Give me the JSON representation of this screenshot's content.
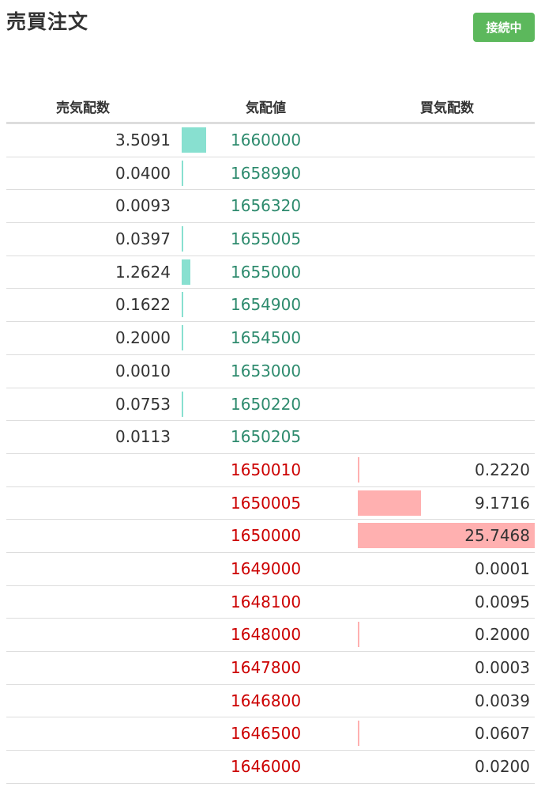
{
  "title": "売買注文",
  "status": "接続中",
  "colors": {
    "ask_price": "#2e8b6e",
    "bid_price": "#cc0000",
    "ask_bar": "#88e0d0",
    "bid_bar": "#ffb0b0",
    "status": "#5cb85c"
  },
  "headers": {
    "ask_qty": "売気配数",
    "price": "気配値",
    "bid_qty": "買気配数"
  },
  "max_qty": 25.7468,
  "asks": [
    {
      "qty": "3.5091",
      "price": "1660000"
    },
    {
      "qty": "0.0400",
      "price": "1658990"
    },
    {
      "qty": "0.0093",
      "price": "1656320"
    },
    {
      "qty": "0.0397",
      "price": "1655005"
    },
    {
      "qty": "1.2624",
      "price": "1655000"
    },
    {
      "qty": "0.1622",
      "price": "1654900"
    },
    {
      "qty": "0.2000",
      "price": "1654500"
    },
    {
      "qty": "0.0010",
      "price": "1653000"
    },
    {
      "qty": "0.0753",
      "price": "1650220"
    },
    {
      "qty": "0.0113",
      "price": "1650205"
    }
  ],
  "bids": [
    {
      "qty": "0.2220",
      "price": "1650010"
    },
    {
      "qty": "9.1716",
      "price": "1650005"
    },
    {
      "qty": "25.7468",
      "price": "1650000"
    },
    {
      "qty": "0.0001",
      "price": "1649000"
    },
    {
      "qty": "0.0095",
      "price": "1648100"
    },
    {
      "qty": "0.2000",
      "price": "1648000"
    },
    {
      "qty": "0.0003",
      "price": "1647800"
    },
    {
      "qty": "0.0039",
      "price": "1646800"
    },
    {
      "qty": "0.0607",
      "price": "1646500"
    },
    {
      "qty": "0.0200",
      "price": "1646000"
    }
  ]
}
